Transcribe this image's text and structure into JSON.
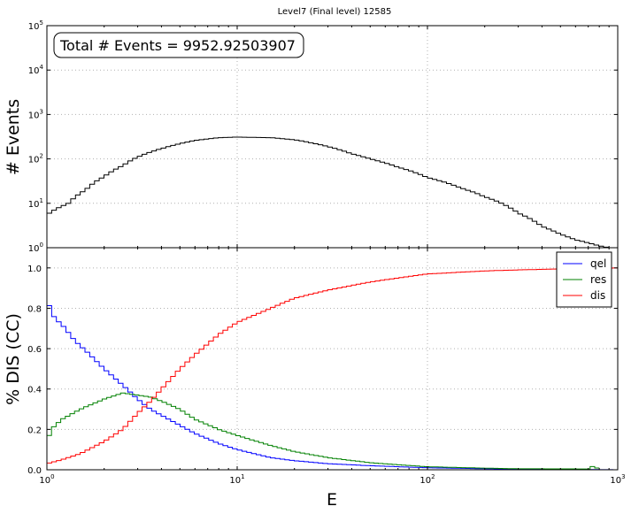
{
  "title": "Level7 (Final level) 12585",
  "chart_data": [
    {
      "type": "line",
      "drawstyle": "steps",
      "title": "Level7 (Final level) 12585",
      "xlabel": "",
      "ylabel": "# Events",
      "xscale": "log",
      "yscale": "log",
      "xlim": [
        1,
        1000
      ],
      "ylim": [
        1,
        100000
      ],
      "x_ticks": [
        1,
        10,
        100,
        1000
      ],
      "y_ticks": [
        1,
        10,
        100,
        1000,
        10000,
        100000
      ],
      "y_tick_labels": [
        {
          "base": "10",
          "exp": "0"
        },
        {
          "base": "10",
          "exp": "1"
        },
        {
          "base": "10",
          "exp": "2"
        },
        {
          "base": "10",
          "exp": "3"
        },
        {
          "base": "10",
          "exp": "4"
        },
        {
          "base": "10",
          "exp": "5"
        }
      ],
      "grid": true,
      "annotation": "Total # Events = 9952.92503907",
      "series": [
        {
          "color": "#000000",
          "points": [
            [
              1,
              5.5
            ],
            [
              1.3,
              10
            ],
            [
              1.6,
              20
            ],
            [
              2,
              40
            ],
            [
              2.5,
              70
            ],
            [
              3,
              110
            ],
            [
              4,
              170
            ],
            [
              5,
              220
            ],
            [
              6,
              260
            ],
            [
              8,
              300
            ],
            [
              10,
              310
            ],
            [
              15,
              300
            ],
            [
              20,
              270
            ],
            [
              30,
              190
            ],
            [
              40,
              130
            ],
            [
              50,
              100
            ],
            [
              70,
              65
            ],
            [
              100,
              38
            ],
            [
              150,
              22
            ],
            [
              200,
              14
            ],
            [
              300,
              6
            ],
            [
              400,
              3
            ],
            [
              500,
              2
            ],
            [
              600,
              1.5
            ],
            [
              800,
              1.1
            ],
            [
              1000,
              0.9
            ]
          ]
        }
      ]
    },
    {
      "type": "line",
      "drawstyle": "steps",
      "xlabel": "E",
      "ylabel": "% DIS (CC)",
      "xscale": "log",
      "xlim": [
        1,
        1000
      ],
      "ylim": [
        0,
        1.1
      ],
      "x_ticks": [
        1,
        10,
        100,
        1000
      ],
      "x_tick_labels": [
        {
          "base": "10",
          "exp": "0"
        },
        {
          "base": "10",
          "exp": "1"
        },
        {
          "base": "10",
          "exp": "2"
        },
        {
          "base": "10",
          "exp": "3"
        }
      ],
      "y_ticks": [
        0.0,
        0.2,
        0.4,
        0.6,
        0.8,
        1.0
      ],
      "y_tick_labels": [
        "0.0",
        "0.2",
        "0.4",
        "0.6",
        "0.8",
        "1.0"
      ],
      "grid": true,
      "legend": "top-right",
      "series": [
        {
          "name": "qel",
          "color": "#0000ff",
          "points": [
            [
              1,
              0.84
            ],
            [
              1.1,
              0.75
            ],
            [
              1.2,
              0.72
            ],
            [
              1.4,
              0.64
            ],
            [
              1.6,
              0.59
            ],
            [
              2,
              0.5
            ],
            [
              2.5,
              0.42
            ],
            [
              3,
              0.35
            ],
            [
              3.5,
              0.3
            ],
            [
              4,
              0.27
            ],
            [
              5,
              0.22
            ],
            [
              6,
              0.18
            ],
            [
              8,
              0.13
            ],
            [
              10,
              0.1
            ],
            [
              15,
              0.06
            ],
            [
              20,
              0.045
            ],
            [
              30,
              0.03
            ],
            [
              50,
              0.02
            ],
            [
              70,
              0.015
            ],
            [
              100,
              0.01
            ],
            [
              200,
              0.005
            ],
            [
              1000,
              0
            ]
          ]
        },
        {
          "name": "res",
          "color": "#008000",
          "points": [
            [
              1,
              0.13
            ],
            [
              1.05,
              0.2
            ],
            [
              1.2,
              0.25
            ],
            [
              1.5,
              0.3
            ],
            [
              2,
              0.35
            ],
            [
              2.5,
              0.38
            ],
            [
              3,
              0.37
            ],
            [
              3.5,
              0.36
            ],
            [
              4,
              0.34
            ],
            [
              5,
              0.3
            ],
            [
              6,
              0.25
            ],
            [
              8,
              0.2
            ],
            [
              10,
              0.17
            ],
            [
              15,
              0.12
            ],
            [
              20,
              0.09
            ],
            [
              30,
              0.06
            ],
            [
              50,
              0.035
            ],
            [
              70,
              0.025
            ],
            [
              100,
              0.015
            ],
            [
              200,
              0.008
            ],
            [
              300,
              0.005
            ],
            [
              700,
              0.004
            ],
            [
              750,
              0.02
            ],
            [
              800,
              0
            ]
          ]
        },
        {
          "name": "dis",
          "color": "#ff0000",
          "points": [
            [
              1,
              0.03
            ],
            [
              1.2,
              0.05
            ],
            [
              1.5,
              0.08
            ],
            [
              2,
              0.14
            ],
            [
              2.5,
              0.2
            ],
            [
              3,
              0.28
            ],
            [
              3.5,
              0.34
            ],
            [
              4,
              0.4
            ],
            [
              5,
              0.5
            ],
            [
              6,
              0.57
            ],
            [
              8,
              0.67
            ],
            [
              10,
              0.73
            ],
            [
              15,
              0.8
            ],
            [
              20,
              0.85
            ],
            [
              30,
              0.89
            ],
            [
              50,
              0.93
            ],
            [
              70,
              0.95
            ],
            [
              100,
              0.97
            ],
            [
              200,
              0.985
            ],
            [
              300,
              0.99
            ],
            [
              500,
              0.995
            ],
            [
              1000,
              1.0
            ]
          ]
        }
      ]
    }
  ]
}
